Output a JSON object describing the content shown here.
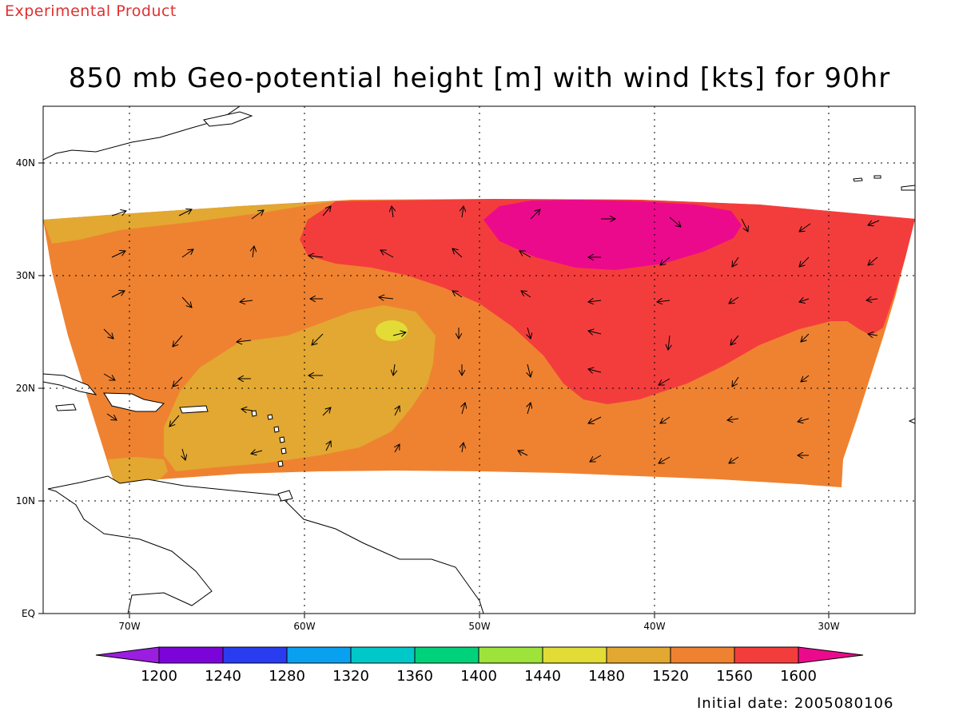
{
  "header": {
    "tag": "Experimental Product",
    "title": "850 mb Geo-potential height [m] with wind [kts] for 90hr"
  },
  "footer": {
    "initial_date": "Initial date: 2005080106"
  },
  "map": {
    "lat_labels": [
      "EQ",
      "10N",
      "20N",
      "30N",
      "40N"
    ],
    "lon_labels": [
      "70W",
      "60W",
      "50W",
      "40W",
      "30W"
    ],
    "fill_colors": {
      "c1520": "#e2a831",
      "c1560": "#ef8230",
      "c1600": "#f33d3d",
      "c1640": "#ec0a8c",
      "c1480": "#e3dc37",
      "land": "#ffffff"
    }
  },
  "colorbar": {
    "labels": [
      "1200",
      "1240",
      "1280",
      "1320",
      "1360",
      "1400",
      "1440",
      "1480",
      "1520",
      "1560",
      "1600"
    ],
    "colors": [
      "#9b1de0",
      "#7b05d8",
      "#2a3cf0",
      "#0aa0f0",
      "#00c8c8",
      "#00d27c",
      "#9ee33a",
      "#e3dc37",
      "#e2a831",
      "#ef8230",
      "#f33d3d",
      "#ec0a8c"
    ]
  }
}
